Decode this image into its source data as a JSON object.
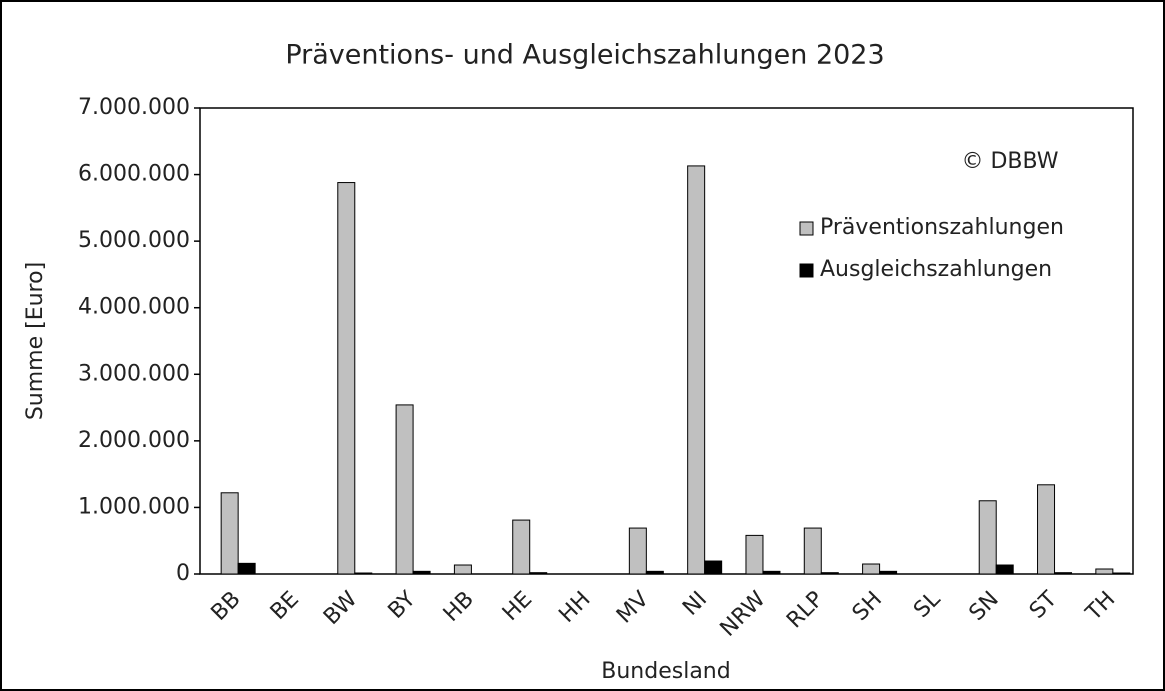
{
  "chart_data": {
    "type": "bar",
    "title": "Präventions- und Ausgleichszahlungen 2023",
    "annotation": "© DBBW",
    "x_label": "Bundesland",
    "y_label": "Summe [Euro]",
    "categories": [
      "BB",
      "BE",
      "BW",
      "BY",
      "HB",
      "HE",
      "HH",
      "MV",
      "NI",
      "NRW",
      "RLP",
      "SH",
      "SL",
      "SN",
      "ST",
      "TH"
    ],
    "series": [
      {
        "name": "Präventionszahlungen",
        "color": "#c0c0c0",
        "values": [
          1220000,
          0,
          5880000,
          2540000,
          135000,
          810000,
          0,
          690000,
          6130000,
          580000,
          690000,
          150000,
          0,
          1100000,
          1340000,
          75000
        ]
      },
      {
        "name": "Ausgleichszahlungen",
        "color": "#000000",
        "values": [
          160000,
          0,
          15000,
          40000,
          0,
          20000,
          0,
          40000,
          195000,
          40000,
          20000,
          40000,
          0,
          135000,
          20000,
          15000
        ]
      }
    ],
    "ylim": [
      0,
      7000000
    ],
    "yticks": [
      0,
      {
        "value": 1000000,
        "label": "1.000.000"
      },
      {
        "value": 2000000,
        "label": "2.000.000"
      },
      {
        "value": 3000000,
        "label": "3.000.000"
      },
      {
        "value": 4000000,
        "label": "4.000.000"
      },
      {
        "value": 5000000,
        "label": "5.000.000"
      },
      {
        "value": 6000000,
        "label": "6.000.000"
      },
      {
        "value": 7000000,
        "label": "7.000.000"
      }
    ],
    "legend": "upper right"
  }
}
